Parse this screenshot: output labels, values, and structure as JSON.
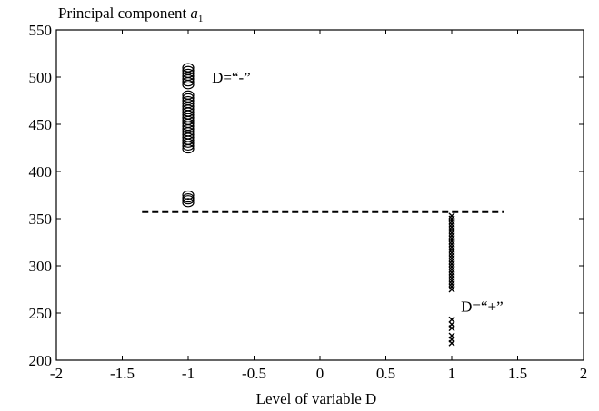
{
  "chart_data": {
    "type": "scatter",
    "title": "",
    "ylabel_prefix": "Principal component ",
    "ylabel_var": "a",
    "ylabel_sub": "1",
    "xlabel": "Level of variable D",
    "xlim": [
      -2,
      2
    ],
    "ylim": [
      200,
      550
    ],
    "xticks": [
      -2,
      -1.5,
      -1,
      -0.5,
      0,
      0.5,
      1,
      1.5,
      2
    ],
    "xtick_labels": [
      "-2",
      "-1.5",
      "-1",
      "-0.5",
      "0",
      "0.5",
      "1",
      "1.5",
      "2"
    ],
    "yticks": [
      200,
      250,
      300,
      350,
      400,
      450,
      500,
      550
    ],
    "ytick_labels": [
      "200",
      "250",
      "300",
      "350",
      "400",
      "450",
      "500",
      "550"
    ],
    "grid": false,
    "series": [
      {
        "marker": "circle",
        "x": -1,
        "values": [
          367,
          370,
          372,
          375,
          424,
          427,
          430,
          433,
          436,
          439,
          442,
          445,
          448,
          451,
          454,
          457,
          460,
          463,
          466,
          469,
          472,
          475,
          478,
          481,
          492,
          495,
          498,
          501,
          504,
          507,
          510
        ]
      },
      {
        "marker": "x",
        "x": 1,
        "values": [
          218,
          222,
          226,
          234,
          238,
          243,
          275,
          278,
          281,
          284,
          287,
          290,
          293,
          296,
          299,
          302,
          305,
          308,
          311,
          314,
          317,
          320,
          323,
          326,
          329,
          332,
          335,
          338,
          341,
          344,
          347,
          350,
          353
        ]
      }
    ],
    "threshold": {
      "y": 357,
      "x_from": -1.35,
      "x_to": 1.4,
      "style": "dashed"
    },
    "annotations": [
      {
        "text": "D=“-”",
        "x": -0.82,
        "y": 500
      },
      {
        "text": "D=“+”",
        "x": 1.07,
        "y": 257
      }
    ]
  }
}
